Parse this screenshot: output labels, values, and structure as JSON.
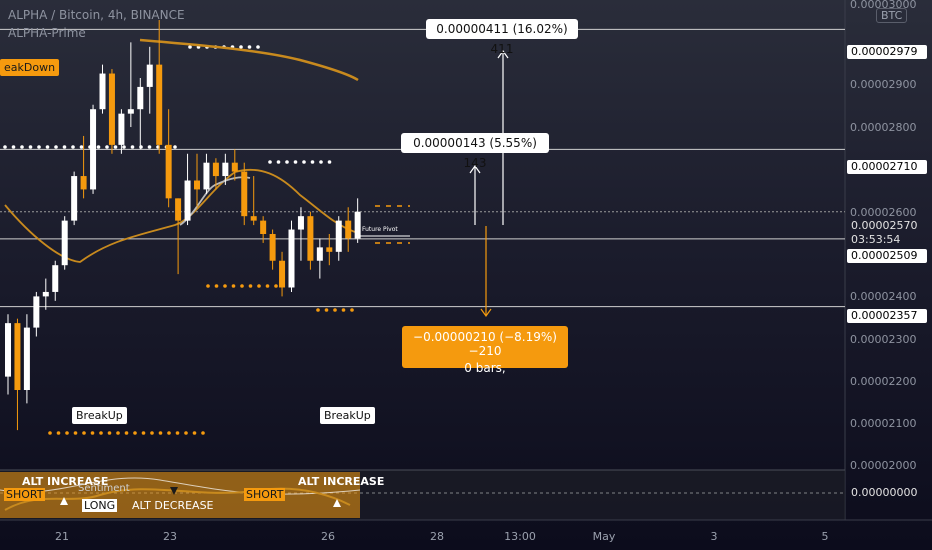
{
  "header": {
    "symbol_line": "ALPHA / Bitcoin, 4h, BINANCE",
    "study_name": "ALPHA-Prime"
  },
  "currency_button": "BTC",
  "labels": {
    "breakdown": "eakDown",
    "breakup_1": "BreakUp",
    "breakup_2": "BreakUp",
    "future_pivot": "Future Pivot"
  },
  "measures": {
    "up_large": "0.00000411 (16.02%) 411",
    "up_small": "0.00000143 (5.55%) 143",
    "down_line1": "−0.00000210 (−8.19%) −210",
    "down_line2": "0 bars,"
  },
  "price_axis": {
    "ticks": [
      "0.00003000",
      "0.00002900",
      "0.00002800",
      "0.00002600",
      "0.00002400",
      "0.00002300",
      "0.00002200",
      "0.00002100",
      "0.00002000"
    ],
    "tags": {
      "upper": "0.00002979",
      "mid_upper": "0.00002710",
      "current": "0.00002570",
      "countdown": "03:53:54",
      "mid_lower": "0.00002509",
      "lower": "0.00002357",
      "indicator_zero": "0.00000000"
    }
  },
  "time_axis": [
    "21",
    "23",
    "26",
    "28",
    "13:00",
    "May",
    "3",
    "5"
  ],
  "indicator": {
    "alt_increase_left": "ALT INCREASE",
    "alt_increase_right": "ALT INCREASE",
    "alt_decrease": "ALT DECREASE",
    "short_left": "SHORT",
    "short_right": "SHORT",
    "long": "LONG",
    "sentiment": "Sentiment"
  },
  "chart_data": {
    "type": "candlestick",
    "title": "ALPHA / Bitcoin, 4h, BINANCE",
    "ylim": [
      1.995e-05,
      3.045e-05
    ],
    "candles": [
      {
        "o": 2.2e-05,
        "h": 2.34e-05,
        "l": 2.16e-05,
        "c": 2.32e-05
      },
      {
        "o": 2.32e-05,
        "h": 2.33e-05,
        "l": 2.08e-05,
        "c": 2.17e-05
      },
      {
        "o": 2.17e-05,
        "h": 2.34e-05,
        "l": 2.14e-05,
        "c": 2.31e-05
      },
      {
        "o": 2.31e-05,
        "h": 2.39e-05,
        "l": 2.29e-05,
        "c": 2.38e-05
      },
      {
        "o": 2.38e-05,
        "h": 2.42e-05,
        "l": 2.35e-05,
        "c": 2.39e-05
      },
      {
        "o": 2.39e-05,
        "h": 2.46e-05,
        "l": 2.37e-05,
        "c": 2.45e-05
      },
      {
        "o": 2.45e-05,
        "h": 2.56e-05,
        "l": 2.44e-05,
        "c": 2.55e-05
      },
      {
        "o": 2.55e-05,
        "h": 2.66e-05,
        "l": 2.54e-05,
        "c": 2.65e-05
      },
      {
        "o": 2.65e-05,
        "h": 2.74e-05,
        "l": 2.6e-05,
        "c": 2.62e-05
      },
      {
        "o": 2.62e-05,
        "h": 2.81e-05,
        "l": 2.61e-05,
        "c": 2.8e-05
      },
      {
        "o": 2.8e-05,
        "h": 2.9e-05,
        "l": 2.79e-05,
        "c": 2.88e-05
      },
      {
        "o": 2.88e-05,
        "h": 2.89e-05,
        "l": 2.7e-05,
        "c": 2.72e-05
      },
      {
        "o": 2.72e-05,
        "h": 2.8e-05,
        "l": 2.7e-05,
        "c": 2.79e-05
      },
      {
        "o": 2.79e-05,
        "h": 2.95e-05,
        "l": 2.76e-05,
        "c": 2.8e-05
      },
      {
        "o": 2.8e-05,
        "h": 2.87e-05,
        "l": 2.71e-05,
        "c": 2.85e-05
      },
      {
        "o": 2.85e-05,
        "h": 2.94e-05,
        "l": 2.79e-05,
        "c": 2.9e-05
      },
      {
        "o": 2.9e-05,
        "h": 3e-05,
        "l": 2.7e-05,
        "c": 2.72e-05
      },
      {
        "o": 2.72e-05,
        "h": 2.8e-05,
        "l": 2.58e-05,
        "c": 2.6e-05
      },
      {
        "o": 2.6e-05,
        "h": 2.6e-05,
        "l": 2.43e-05,
        "c": 2.55e-05
      },
      {
        "o": 2.55e-05,
        "h": 2.7e-05,
        "l": 2.54e-05,
        "c": 2.64e-05
      },
      {
        "o": 2.64e-05,
        "h": 2.7e-05,
        "l": 2.58e-05,
        "c": 2.62e-05
      },
      {
        "o": 2.62e-05,
        "h": 2.7e-05,
        "l": 2.61e-05,
        "c": 2.68e-05
      },
      {
        "o": 2.68e-05,
        "h": 2.69e-05,
        "l": 2.62e-05,
        "c": 2.65e-05
      },
      {
        "o": 2.65e-05,
        "h": 2.7e-05,
        "l": 2.63e-05,
        "c": 2.68e-05
      },
      {
        "o": 2.68e-05,
        "h": 2.71e-05,
        "l": 2.64e-05,
        "c": 2.66e-05
      },
      {
        "o": 2.66e-05,
        "h": 2.68e-05,
        "l": 2.54e-05,
        "c": 2.56e-05
      },
      {
        "o": 2.56e-05,
        "h": 2.65e-05,
        "l": 2.54e-05,
        "c": 2.55e-05
      },
      {
        "o": 2.55e-05,
        "h": 2.56e-05,
        "l": 2.5e-05,
        "c": 2.52e-05
      },
      {
        "o": 2.52e-05,
        "h": 2.53e-05,
        "l": 2.44e-05,
        "c": 2.46e-05
      },
      {
        "o": 2.46e-05,
        "h": 2.48e-05,
        "l": 2.38e-05,
        "c": 2.4e-05
      },
      {
        "o": 2.4e-05,
        "h": 2.55e-05,
        "l": 2.39e-05,
        "c": 2.53e-05
      },
      {
        "o": 2.53e-05,
        "h": 2.58e-05,
        "l": 2.46e-05,
        "c": 2.56e-05
      },
      {
        "o": 2.56e-05,
        "h": 2.57e-05,
        "l": 2.44e-05,
        "c": 2.46e-05
      },
      {
        "o": 2.46e-05,
        "h": 2.51e-05,
        "l": 2.42e-05,
        "c": 2.49e-05
      },
      {
        "o": 2.49e-05,
        "h": 2.52e-05,
        "l": 2.45e-05,
        "c": 2.48e-05
      },
      {
        "o": 2.48e-05,
        "h": 2.56e-05,
        "l": 2.46e-05,
        "c": 2.55e-05
      },
      {
        "o": 2.55e-05,
        "h": 2.58e-05,
        "l": 2.48e-05,
        "c": 2.51e-05
      },
      {
        "o": 2.51e-05,
        "h": 2.6e-05,
        "l": 2.5e-05,
        "c": 2.57e-05
      }
    ],
    "levels": [
      2.979e-05,
      2.71e-05,
      2.509e-05,
      2.357e-05
    ],
    "current_price": 2.57e-05
  }
}
